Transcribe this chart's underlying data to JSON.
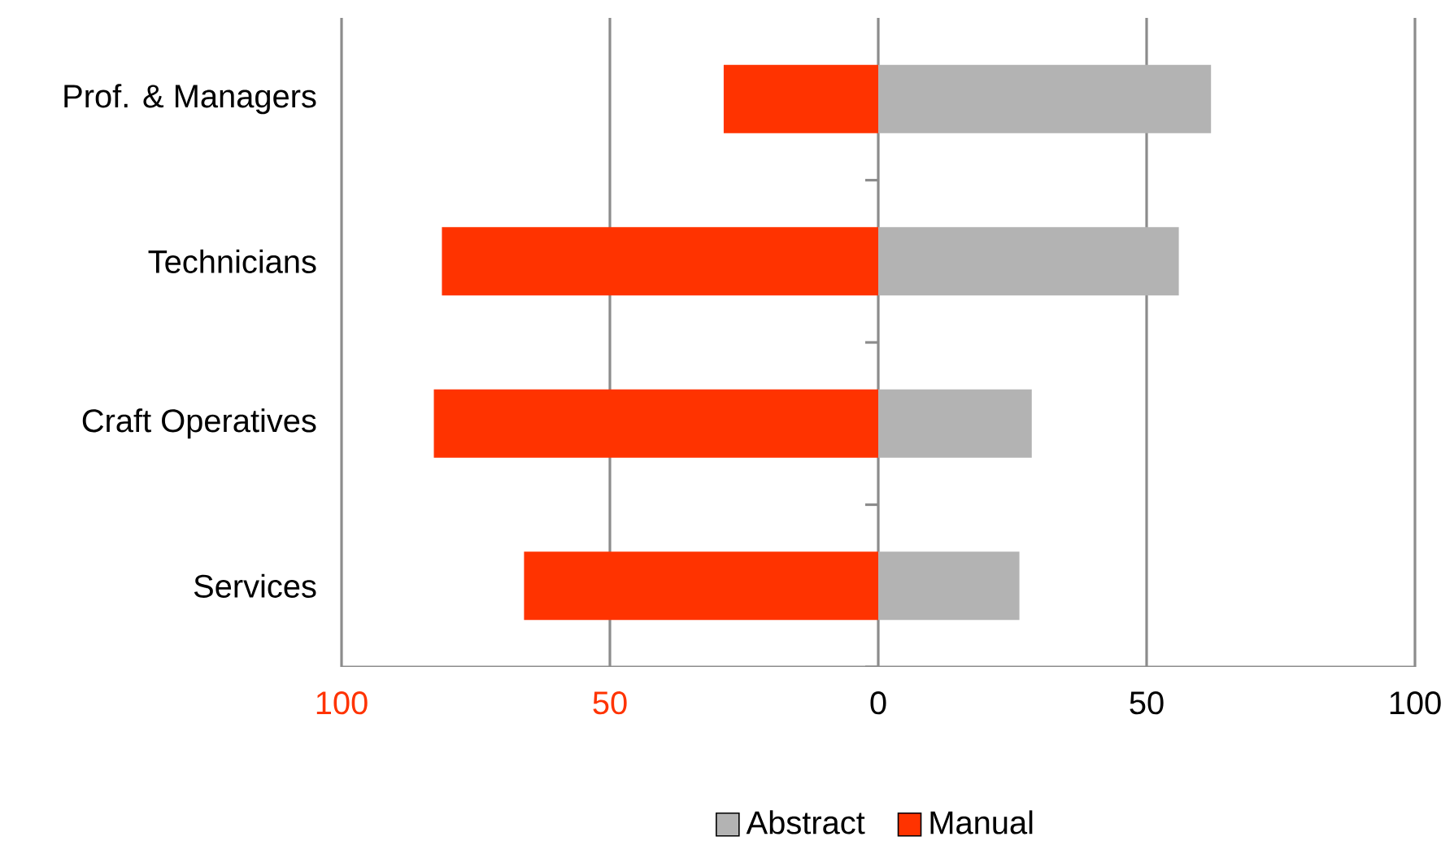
{
  "chart_data": {
    "type": "bar",
    "orientation": "horizontal",
    "stacked": true,
    "categories": [
      "Prof. & Managers",
      "Technicians",
      "Craft Operatives",
      "Services"
    ],
    "series": [
      {
        "name": "Abstract",
        "color": "#b3b3b3",
        "values": [
          62,
          56,
          28.6,
          26.3
        ]
      },
      {
        "name": "Manual",
        "color": "#ff3300",
        "values": [
          -28.8,
          -81.3,
          -82.8,
          -66
        ]
      }
    ],
    "xlim": [
      -100,
      100
    ],
    "xticks": [
      {
        "value": -100,
        "label": "100"
      },
      {
        "value": -50,
        "label": "50"
      },
      0,
      50,
      100
    ],
    "grid": "x",
    "legend": "bottom"
  }
}
